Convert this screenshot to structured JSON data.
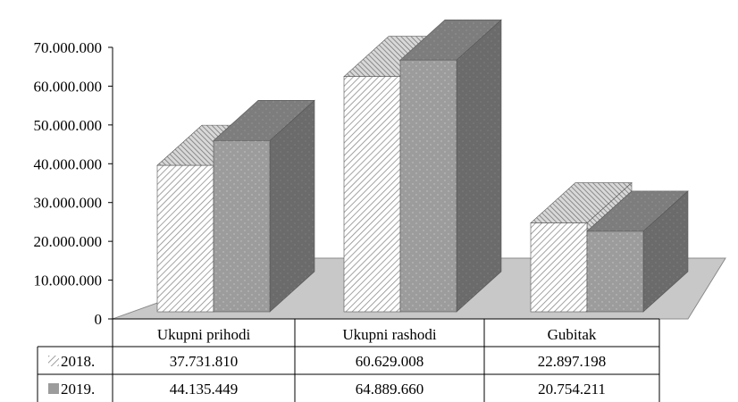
{
  "chart_data": {
    "type": "bar",
    "variant": "3d-clustered-column-with-data-table",
    "categories": [
      "Ukupni prihodi",
      "Ukupni rashodi",
      "Gubitak"
    ],
    "series": [
      {
        "name": "2018.",
        "values": [
          37731810,
          60629008,
          22897198
        ],
        "pattern": "diagonal-hatch",
        "value_labels": [
          "37.731.810",
          "60.629.008",
          "22.897.198"
        ]
      },
      {
        "name": "2019.",
        "values": [
          44135449,
          64889660,
          20754211
        ],
        "pattern": "dotted-gray",
        "value_labels": [
          "44.135.449",
          "64.889.660",
          "20.754.211"
        ]
      }
    ],
    "y_ticks": [
      "0",
      "10.000.000",
      "20.000.000",
      "30.000.000",
      "40.000.000",
      "50.000.000",
      "60.000.000",
      "70.000.000"
    ],
    "ylim": [
      0,
      70000000
    ],
    "title": "",
    "xlabel": "",
    "ylabel": "",
    "grid": false,
    "legend": "data-table",
    "colors": {
      "floor": "#c8c8c8",
      "series_2019_front": "#9a9a9a",
      "series_2019_side": "#6e6e6e",
      "series_2019_top": "#7a7a7a"
    }
  }
}
